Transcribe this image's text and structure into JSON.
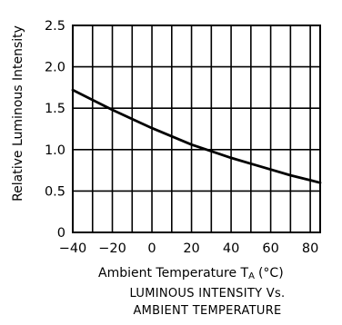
{
  "chart_data": {
    "type": "line",
    "xlabel": "Ambient Temperature T",
    "xlabel_subscript": "A",
    "xlabel_unit": "(°C)",
    "ylabel": "Relative Luminous Intensity",
    "caption_line1": "LUMINOUS INTENSITY Vs.",
    "caption_line2": "AMBIENT TEMPERATURE",
    "xlim": [
      -40,
      85
    ],
    "ylim": [
      0,
      2.5
    ],
    "x_ticks": [
      -40,
      -20,
      0,
      20,
      40,
      60,
      80
    ],
    "x_tick_labels": [
      "−40",
      "−20",
      "0",
      "20",
      "40",
      "60",
      "80"
    ],
    "y_ticks": [
      0,
      0.5,
      1.0,
      1.5,
      2.0,
      2.5
    ],
    "y_tick_labels": [
      "0",
      "0.5",
      "1.0",
      "1.5",
      "2.0",
      "2.5"
    ],
    "grid": true,
    "series": [
      {
        "x": [
          -40,
          -30,
          -20,
          -10,
          0,
          10,
          20,
          30,
          40,
          50,
          60,
          70,
          80,
          85
        ],
        "y": [
          1.72,
          1.6,
          1.48,
          1.37,
          1.26,
          1.16,
          1.06,
          0.98,
          0.9,
          0.83,
          0.76,
          0.69,
          0.63,
          0.6
        ]
      }
    ],
    "line_color": "#000000"
  }
}
